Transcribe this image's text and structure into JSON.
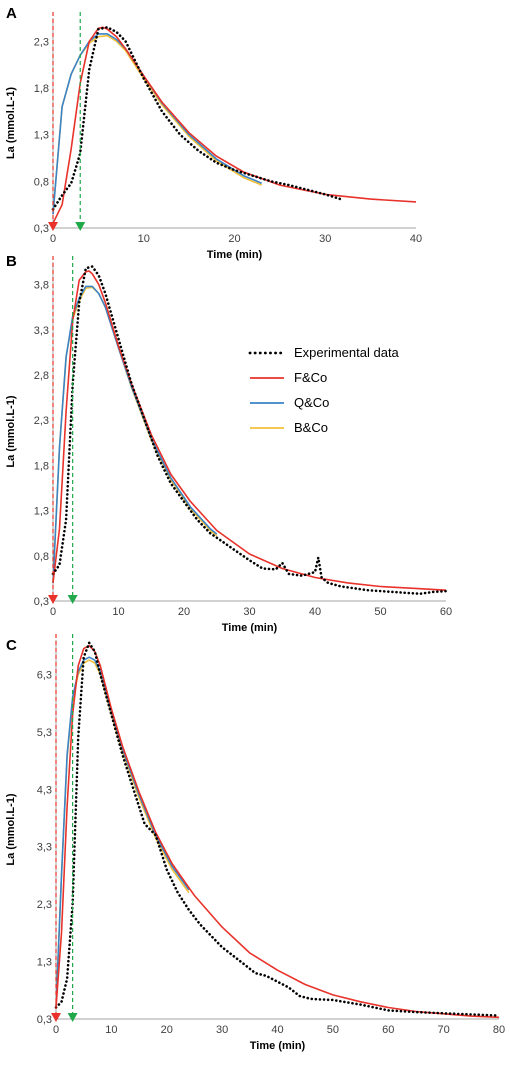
{
  "colors": {
    "experimental": "#000000",
    "fco": "#e8322a",
    "qco": "#3a83c6",
    "bco": "#f2c03a",
    "red_marker": "#e8322a",
    "green_marker": "#20a84a",
    "axis": "#a6a6a6"
  },
  "legend": {
    "placement": "inside panel B, right of the peak",
    "items": [
      {
        "label": "Experimental data",
        "style": "dotted",
        "color_key": "experimental"
      },
      {
        "label": "F&Co",
        "style": "line",
        "color_key": "fco"
      },
      {
        "label": "Q&Co",
        "style": "line",
        "color_key": "qco"
      },
      {
        "label": "B&Co",
        "style": "line",
        "color_key": "bco"
      }
    ]
  },
  "chart_data": [
    {
      "panel_label": "A",
      "type": "line",
      "xlabel": "Time (min)",
      "ylabel": "La (mmol.L-1)",
      "xlim": [
        0,
        40
      ],
      "ylim": [
        0.3,
        2.55
      ],
      "xticks": [
        "0",
        "10",
        "20",
        "30",
        "40"
      ],
      "yticks": [
        "0,3",
        "0,8",
        "1,3",
        "1,8",
        "2,3"
      ],
      "ytick_values": [
        0.3,
        0.8,
        1.3,
        1.8,
        2.3
      ],
      "markers": {
        "red_x": 0,
        "green_x": 3
      },
      "model_params": {
        "start": 0.35,
        "peak_time": 5.5,
        "peak": 2.45,
        "tail": 0.55,
        "tau": 7.5
      },
      "series": [
        {
          "name": "Experimental data",
          "x": [
            0,
            1,
            2,
            3,
            4,
            5,
            6,
            7,
            8,
            10,
            12,
            14,
            16,
            18,
            20,
            22,
            24,
            26,
            28,
            30,
            32
          ],
          "y": [
            0.5,
            0.65,
            0.78,
            1.1,
            2.0,
            2.43,
            2.45,
            2.4,
            2.3,
            1.9,
            1.55,
            1.3,
            1.13,
            1.0,
            0.92,
            0.86,
            0.8,
            0.76,
            0.71,
            0.66,
            0.6
          ]
        },
        {
          "name": "F&Co",
          "x": [
            0,
            1,
            2,
            3,
            4,
            5,
            5.5,
            6,
            7,
            8,
            10,
            12,
            15,
            18,
            21,
            25,
            30,
            35,
            40
          ],
          "y": [
            0.35,
            0.55,
            1.15,
            1.85,
            2.3,
            2.44,
            2.45,
            2.43,
            2.35,
            2.22,
            1.93,
            1.65,
            1.32,
            1.07,
            0.9,
            0.76,
            0.66,
            0.61,
            0.58
          ]
        },
        {
          "name": "Q&Co",
          "x": [
            0,
            1,
            2,
            3,
            4,
            5,
            6,
            7,
            8,
            10,
            12,
            15,
            18,
            21,
            23
          ],
          "y": [
            0.45,
            1.6,
            1.95,
            2.15,
            2.3,
            2.38,
            2.38,
            2.32,
            2.22,
            1.93,
            1.64,
            1.3,
            1.04,
            0.86,
            0.78
          ]
        },
        {
          "name": "B&Co",
          "x": [
            0,
            1,
            2,
            3,
            4,
            5,
            6,
            7,
            8,
            10,
            12,
            15,
            18,
            21,
            23
          ],
          "y": [
            0.45,
            1.6,
            1.95,
            2.15,
            2.28,
            2.35,
            2.36,
            2.3,
            2.2,
            1.9,
            1.62,
            1.28,
            1.02,
            0.84,
            0.76
          ]
        }
      ]
    },
    {
      "panel_label": "B",
      "type": "line",
      "xlabel": "Time (min)",
      "ylabel": "La (mmol.L-1)",
      "xlim": [
        0,
        60
      ],
      "ylim": [
        0.3,
        4.05
      ],
      "xticks": [
        "0",
        "10",
        "20",
        "30",
        "40",
        "50",
        "60"
      ],
      "yticks": [
        "0,3",
        "0,8",
        "1,3",
        "1,8",
        "2,3",
        "2,8",
        "3,3",
        "3,8"
      ],
      "ytick_values": [
        0.3,
        0.8,
        1.3,
        1.8,
        2.3,
        2.8,
        3.3,
        3.8
      ],
      "markers": {
        "red_x": 0,
        "green_x": 3
      },
      "model_params": {
        "start": 0.5,
        "peak_time": 5.5,
        "peak": 3.95,
        "tail": 0.4,
        "tau": 9.0
      },
      "series": [
        {
          "name": "Experimental data",
          "x": [
            0,
            1,
            2,
            3,
            4,
            5,
            6,
            7,
            8,
            10,
            12,
            14,
            16,
            18,
            20,
            22,
            24,
            26,
            28,
            30,
            32,
            34,
            35,
            36,
            38,
            40,
            40.5,
            41,
            42,
            44,
            46,
            48,
            50,
            52,
            54,
            56,
            58,
            60
          ],
          "y": [
            0.6,
            0.7,
            1.2,
            2.7,
            3.6,
            3.98,
            4.0,
            3.9,
            3.7,
            3.2,
            2.7,
            2.3,
            1.9,
            1.6,
            1.4,
            1.2,
            1.05,
            0.95,
            0.85,
            0.75,
            0.66,
            0.65,
            0.72,
            0.6,
            0.58,
            0.62,
            0.78,
            0.56,
            0.5,
            0.46,
            0.44,
            0.42,
            0.41,
            0.4,
            0.39,
            0.38,
            0.4,
            0.41
          ]
        },
        {
          "name": "F&Co",
          "x": [
            0,
            1,
            2,
            3,
            4,
            5,
            5.5,
            6,
            7,
            8,
            10,
            12,
            15,
            18,
            21,
            25,
            30,
            35,
            40,
            45,
            50,
            55,
            60
          ],
          "y": [
            0.5,
            1.1,
            2.4,
            3.4,
            3.85,
            3.94,
            3.95,
            3.92,
            3.8,
            3.6,
            3.12,
            2.7,
            2.14,
            1.7,
            1.4,
            1.08,
            0.82,
            0.66,
            0.56,
            0.5,
            0.46,
            0.44,
            0.42
          ]
        },
        {
          "name": "Q&Co",
          "x": [
            0,
            1,
            2,
            3,
            4,
            5,
            6,
            7,
            8,
            10,
            12,
            15,
            18,
            21,
            24,
            25
          ],
          "y": [
            0.5,
            2.0,
            3.0,
            3.45,
            3.65,
            3.78,
            3.78,
            3.7,
            3.55,
            3.1,
            2.67,
            2.1,
            1.66,
            1.34,
            1.1,
            1.04
          ]
        },
        {
          "name": "B&Co",
          "x": [
            0,
            1,
            2,
            3,
            4,
            5,
            6,
            7,
            8,
            10,
            12,
            15,
            18,
            21,
            24,
            25
          ],
          "y": [
            0.5,
            2.0,
            3.0,
            3.42,
            3.62,
            3.76,
            3.77,
            3.7,
            3.55,
            3.1,
            2.66,
            2.08,
            1.64,
            1.32,
            1.08,
            1.02
          ]
        }
      ]
    },
    {
      "panel_label": "C",
      "type": "line",
      "xlabel": "Time (min)",
      "ylabel": "La (mmol.L-1)",
      "xlim": [
        0,
        80
      ],
      "ylim": [
        0.3,
        6.9
      ],
      "xticks": [
        "0",
        "10",
        "20",
        "30",
        "40",
        "50",
        "60",
        "70",
        "80"
      ],
      "yticks": [
        "0,3",
        "1,3",
        "2,3",
        "3,3",
        "4,3",
        "5,3",
        "6,3"
      ],
      "ytick_values": [
        0.3,
        1.3,
        2.3,
        3.3,
        4.3,
        5.3,
        6.3
      ],
      "markers": {
        "red_x": 0,
        "green_x": 3
      },
      "model_params": {
        "start": 0.5,
        "peak_time": 6,
        "peak": 6.8,
        "tail": 0.3,
        "tau": 12.0
      },
      "series": [
        {
          "name": "Experimental data",
          "x": [
            0,
            1,
            2,
            3,
            4,
            5,
            6,
            7,
            8,
            10,
            12,
            14,
            16,
            17,
            18,
            20,
            22,
            24,
            26,
            28,
            30,
            32,
            34,
            36,
            38,
            40,
            42,
            44,
            46,
            48,
            50,
            55,
            60,
            65,
            70,
            75,
            80
          ],
          "y": [
            0.5,
            0.6,
            1.0,
            2.3,
            5.2,
            6.6,
            6.85,
            6.7,
            6.3,
            5.6,
            4.9,
            4.3,
            3.7,
            3.6,
            3.5,
            2.9,
            2.5,
            2.2,
            1.95,
            1.75,
            1.55,
            1.4,
            1.25,
            1.1,
            1.05,
            0.95,
            0.85,
            0.7,
            0.65,
            0.64,
            0.63,
            0.55,
            0.45,
            0.42,
            0.4,
            0.38,
            0.36
          ]
        },
        {
          "name": "F&Co",
          "x": [
            0,
            1,
            2,
            3,
            4,
            5,
            6,
            7,
            8,
            10,
            12,
            15,
            18,
            21,
            25,
            30,
            35,
            40,
            45,
            50,
            55,
            60,
            65,
            70,
            75,
            80
          ],
          "y": [
            0.5,
            1.8,
            4.0,
            5.6,
            6.45,
            6.75,
            6.8,
            6.7,
            6.45,
            5.7,
            5.05,
            4.25,
            3.55,
            3.0,
            2.45,
            1.9,
            1.45,
            1.15,
            0.9,
            0.72,
            0.6,
            0.5,
            0.43,
            0.39,
            0.35,
            0.33
          ]
        },
        {
          "name": "Q&Co",
          "x": [
            0,
            1,
            2,
            3,
            4,
            5,
            6,
            7,
            8,
            10,
            12,
            15,
            18,
            21,
            24
          ],
          "y": [
            0.5,
            2.8,
            4.9,
            5.9,
            6.35,
            6.55,
            6.6,
            6.55,
            6.35,
            5.65,
            5.0,
            4.2,
            3.5,
            2.95,
            2.55
          ]
        },
        {
          "name": "B&Co",
          "x": [
            0,
            1,
            2,
            3,
            4,
            5,
            6,
            7,
            8,
            10,
            12,
            15,
            18,
            21,
            24
          ],
          "y": [
            0.5,
            2.8,
            4.85,
            5.85,
            6.3,
            6.5,
            6.55,
            6.5,
            6.3,
            5.6,
            4.95,
            4.15,
            3.45,
            2.9,
            2.5
          ]
        }
      ]
    }
  ]
}
